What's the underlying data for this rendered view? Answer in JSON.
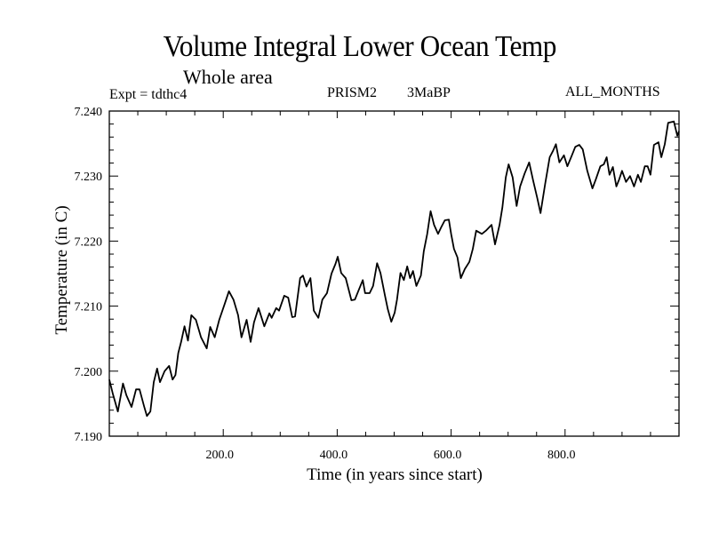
{
  "chart_data": {
    "type": "line",
    "title": "Volume Integral Lower Ocean Temp",
    "subtitle": "Whole area",
    "annotations": {
      "experiment": "Expt = tdthc4",
      "model": "PRISM2",
      "period": "3MaBP",
      "months": "ALL_MONTHS"
    },
    "xlabel": "Time (in years since start)",
    "ylabel": "Temperature (in C)",
    "xlim": [
      0,
      1000
    ],
    "ylim": [
      7.19,
      7.24
    ],
    "x_ticks": [
      200,
      400,
      600,
      800
    ],
    "x_tick_labels": [
      "200.0",
      "400.0",
      "600.0",
      "800.0"
    ],
    "x_minor_step": 50,
    "y_ticks": [
      7.19,
      7.2,
      7.21,
      7.22,
      7.23,
      7.24
    ],
    "y_tick_labels": [
      "7.190",
      "7.200",
      "7.210",
      "7.220",
      "7.230",
      "7.240"
    ],
    "y_minor_step": 0.002,
    "grid": false,
    "legend": "none",
    "series": [
      {
        "name": "Volume Integral Lower Ocean Temp",
        "color": "#000000",
        "x": [
          0,
          6,
          15,
          24,
          30,
          39,
          47,
          53,
          61,
          66,
          72,
          78,
          84,
          89,
          97,
          105,
          111,
          116,
          121,
          126,
          132,
          138,
          144,
          152,
          161,
          171,
          177,
          185,
          193,
          202,
          210,
          218,
          226,
          232,
          241,
          248,
          254,
          262,
          272,
          281,
          285,
          293,
          298,
          307,
          314,
          321,
          326,
          335,
          340,
          346,
          353,
          359,
          367,
          374,
          382,
          390,
          397,
          401,
          407,
          415,
          425,
          431,
          437,
          445,
          449,
          457,
          463,
          470,
          476,
          484,
          489,
          495,
          501,
          505,
          511,
          517,
          523,
          528,
          533,
          539,
          547,
          552,
          558,
          564,
          570,
          577,
          583,
          589,
          596,
          600,
          605,
          611,
          617,
          624,
          632,
          638,
          644,
          654,
          661,
          671,
          677,
          685,
          690,
          696,
          701,
          708,
          715,
          721,
          729,
          737,
          744,
          751,
          757,
          765,
          773,
          779,
          784,
          790,
          798,
          804,
          812,
          818,
          825,
          831,
          839,
          848,
          854,
          862,
          868,
          873,
          878,
          884,
          890,
          895,
          900,
          907,
          914,
          921,
          928,
          933,
          940,
          945,
          950,
          956,
          964,
          969,
          975,
          981,
          991,
          997,
          1000
        ],
        "y": [
          7.1987,
          7.1966,
          7.1938,
          7.1981,
          7.1963,
          7.1945,
          7.1972,
          7.1972,
          7.1946,
          7.1931,
          7.1938,
          7.1983,
          7.2004,
          7.1983,
          7.2,
          7.2008,
          7.1987,
          7.1994,
          7.2028,
          7.2045,
          7.2069,
          7.2047,
          7.2086,
          7.2079,
          7.2052,
          7.2035,
          7.2068,
          7.2052,
          7.2079,
          7.2102,
          7.2123,
          7.211,
          7.2086,
          7.2052,
          7.2079,
          7.2045,
          7.2075,
          7.2097,
          7.2069,
          7.2089,
          7.2082,
          7.2097,
          7.2093,
          7.2116,
          7.2113,
          7.2083,
          7.2084,
          7.2143,
          7.2147,
          7.213,
          7.2143,
          7.2093,
          7.2082,
          7.211,
          7.212,
          7.215,
          7.2165,
          7.2176,
          7.2151,
          7.2143,
          7.2109,
          7.211,
          7.2123,
          7.214,
          7.212,
          7.212,
          7.2131,
          7.2166,
          7.2151,
          7.2116,
          7.2095,
          7.2076,
          7.209,
          7.211,
          7.2151,
          7.214,
          7.2161,
          7.2143,
          7.2154,
          7.2131,
          7.2147,
          7.2184,
          7.2211,
          7.2246,
          7.2225,
          7.2211,
          7.2222,
          7.2232,
          7.2233,
          7.2211,
          7.2188,
          7.2175,
          7.2143,
          7.2157,
          7.2168,
          7.2188,
          7.2216,
          7.2211,
          7.2216,
          7.2225,
          7.2195,
          7.2225,
          7.2252,
          7.2298,
          7.2318,
          7.2298,
          7.2254,
          7.2284,
          7.2304,
          7.2321,
          7.2293,
          7.2267,
          7.2243,
          7.2288,
          7.2329,
          7.2339,
          7.2349,
          7.2321,
          7.2332,
          7.2315,
          7.2332,
          7.2345,
          7.2348,
          7.2341,
          7.2308,
          7.2281,
          7.2295,
          7.2315,
          7.2318,
          7.2329,
          7.2302,
          7.2314,
          7.2284,
          7.2295,
          7.2308,
          7.2291,
          7.23,
          7.2284,
          7.2302,
          7.2291,
          7.2315,
          7.2315,
          7.2302,
          7.2348,
          7.2352,
          7.2329,
          7.2349,
          7.2382,
          7.2384,
          7.2362,
          7.2369
        ]
      }
    ]
  }
}
